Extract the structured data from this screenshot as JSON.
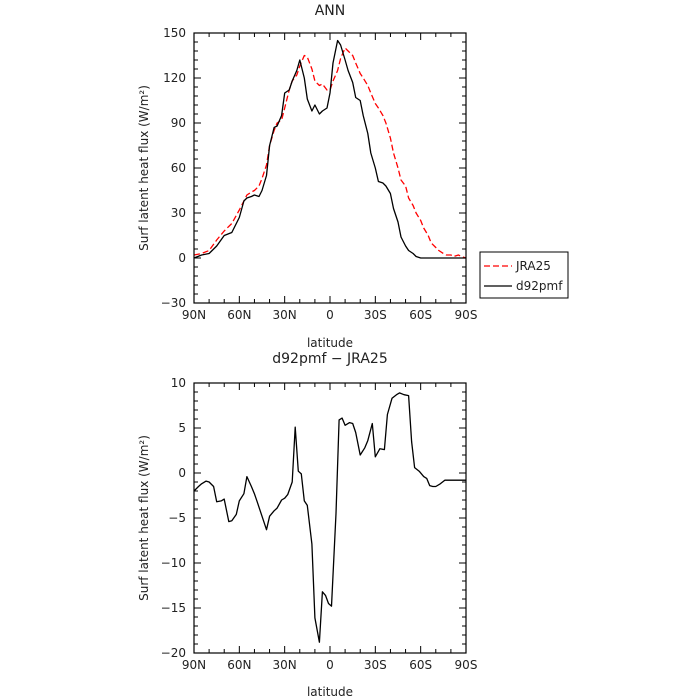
{
  "chart_data": [
    {
      "type": "line",
      "title": "ANN",
      "xlabel": "latitude",
      "ylabel": "Surf latent heat flux (W/m²)",
      "xlim": [
        90,
        -90
      ],
      "ylim": [
        -30,
        150
      ],
      "xticks": [
        90,
        60,
        30,
        0,
        -30,
        -60,
        -90
      ],
      "xtick_labels": [
        "90N",
        "60N",
        "30N",
        "0",
        "30S",
        "60S",
        "90S"
      ],
      "yticks": [
        -30,
        0,
        30,
        60,
        90,
        120,
        150
      ],
      "ytick_labels": [
        "−30",
        "0",
        "30",
        "60",
        "90",
        "120",
        "150"
      ],
      "legend_position": "right",
      "series": [
        {
          "name": "JRA25",
          "color": "#ff0000",
          "dash": "dashed",
          "x": [
            90,
            85,
            80,
            75,
            70,
            65,
            60,
            57,
            55,
            52,
            50,
            47,
            45,
            42,
            40,
            37,
            35,
            32,
            30,
            27,
            25,
            22,
            20,
            17,
            15,
            12,
            10,
            7,
            5,
            2,
            0,
            -2,
            -5,
            -7,
            -10,
            -12,
            -15,
            -17,
            -20,
            -22,
            -25,
            -27,
            -30,
            -32,
            -35,
            -37,
            -40,
            -42,
            -45,
            -47,
            -50,
            -52,
            -55,
            -57,
            -60,
            -62,
            -65,
            -67,
            -70,
            -72,
            -75,
            -77,
            -80,
            -82,
            -85,
            -87,
            -90
          ],
          "values": [
            2,
            3,
            5,
            12,
            18,
            23,
            32,
            38,
            42,
            44,
            45,
            48,
            53,
            62,
            75,
            85,
            90,
            92,
            100,
            112,
            118,
            122,
            128,
            135,
            134,
            126,
            118,
            115,
            116,
            112,
            112,
            118,
            125,
            133,
            140,
            138,
            135,
            130,
            123,
            120,
            115,
            110,
            103,
            100,
            95,
            90,
            80,
            70,
            60,
            52,
            48,
            40,
            35,
            30,
            25,
            20,
            15,
            10,
            7,
            5,
            3,
            2,
            2,
            1,
            2,
            1,
            0
          ]
        },
        {
          "name": "d92pmf",
          "color": "#000000",
          "dash": "solid",
          "x": [
            90,
            85,
            80,
            75,
            70,
            65,
            60,
            57,
            55,
            52,
            50,
            47,
            45,
            42,
            40,
            37,
            35,
            32,
            30,
            27,
            25,
            22,
            20,
            17,
            15,
            12,
            10,
            7,
            5,
            2,
            0,
            -2,
            -5,
            -7,
            -10,
            -12,
            -15,
            -17,
            -20,
            -22,
            -25,
            -27,
            -30,
            -32,
            -35,
            -37,
            -40,
            -42,
            -45,
            -47,
            -50,
            -52,
            -55,
            -57,
            -60,
            -62,
            -65,
            -67,
            -70,
            -72,
            -75,
            -77,
            -80,
            -82,
            -85,
            -87,
            -90
          ],
          "values": [
            0,
            2,
            3,
            8,
            15,
            17,
            27,
            38,
            40,
            41,
            42,
            41,
            45,
            55,
            75,
            87,
            88,
            95,
            110,
            112,
            118,
            125,
            132,
            120,
            106,
            98,
            102,
            96,
            98,
            100,
            110,
            130,
            145,
            142,
            132,
            125,
            117,
            107,
            105,
            95,
            83,
            70,
            60,
            51,
            50,
            48,
            43,
            33,
            24,
            14,
            8,
            5,
            3,
            1,
            0,
            0,
            0,
            0,
            0,
            0,
            0,
            0,
            0,
            0,
            0,
            0,
            0
          ]
        }
      ]
    },
    {
      "type": "line",
      "title": "d92pmf − JRA25",
      "xlabel": "latitude",
      "ylabel": "Surf latent heat flux (W/m²)",
      "xlim": [
        90,
        -90
      ],
      "ylim": [
        -20,
        10
      ],
      "xticks": [
        90,
        60,
        30,
        0,
        -30,
        -60,
        -90
      ],
      "xtick_labels": [
        "90N",
        "60N",
        "30N",
        "0",
        "30S",
        "60S",
        "90S"
      ],
      "yticks": [
        -20,
        -15,
        -10,
        -5,
        0,
        5,
        10
      ],
      "ytick_labels": [
        "−20",
        "−15",
        "−10",
        "−5",
        "0",
        "5",
        "10"
      ],
      "series": [
        {
          "color": "#000000",
          "dash": "solid",
          "x": [
            90,
            87,
            85,
            82,
            80,
            77,
            75,
            72,
            70,
            67,
            65,
            62,
            60,
            57,
            55,
            52,
            50,
            48,
            45,
            42,
            40,
            37,
            35,
            32,
            30,
            28,
            25,
            23,
            21,
            19,
            17,
            15,
            12,
            10,
            7,
            5,
            3,
            1,
            -1,
            -4,
            -6,
            -8,
            -10,
            -13,
            -15,
            -17,
            -20,
            -23,
            -25,
            -28,
            -30,
            -33,
            -36,
            -38,
            -41,
            -44,
            -46,
            -49,
            -52,
            -54,
            -56,
            -59,
            -62,
            -64,
            -66,
            -68,
            -70,
            -73,
            -76,
            -78,
            -80,
            -82,
            -85,
            -88,
            -90
          ],
          "values": [
            -2,
            -1.5,
            -1.2,
            -0.9,
            -1,
            -1.5,
            -3.2,
            -3.1,
            -2.9,
            -5.4,
            -5.3,
            -4.6,
            -3.1,
            -2.3,
            -0.4,
            -1.5,
            -2.3,
            -3.3,
            -4.8,
            -6.3,
            -4.8,
            -4.2,
            -3.9,
            -3.0,
            -2.8,
            -2.4,
            -1.0,
            5.1,
            0.2,
            -0.1,
            -3.1,
            -3.6,
            -7.9,
            -16.1,
            -18.8,
            -13.2,
            -13.6,
            -14.5,
            -14.8,
            -4.5,
            5.9,
            6.1,
            5.3,
            5.6,
            5.5,
            4.5,
            2.0,
            2.8,
            3.6,
            5.5,
            1.8,
            2.7,
            2.6,
            6.5,
            8.3,
            8.7,
            8.9,
            8.7,
            8.6,
            3.5,
            0.6,
            0.2,
            -0.4,
            -0.6,
            -1.4,
            -1.5,
            -1.5,
            -1.2,
            -0.8,
            -0.8,
            -0.8,
            -0.8,
            -0.8,
            -0.8,
            -0.8
          ]
        }
      ]
    }
  ]
}
